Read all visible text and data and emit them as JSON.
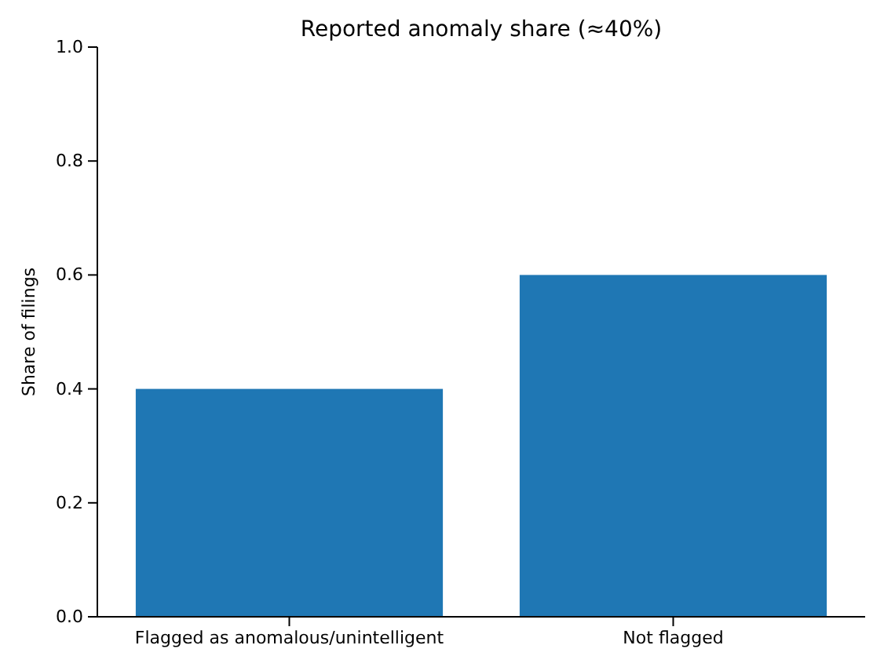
{
  "chart_data": {
    "type": "bar",
    "title": "Reported anomaly share (≈40%)",
    "ylabel": "Share of filings",
    "categories": [
      "Flagged as anomalous/unintelligent",
      "Not flagged"
    ],
    "values": [
      0.4,
      0.6
    ],
    "color": "#1f77b4",
    "ylim": [
      0,
      1
    ],
    "yticks": [
      {
        "value": 0,
        "label": "0.0"
      },
      {
        "value": 0.2,
        "label": "0.2"
      },
      {
        "value": 0.4,
        "label": "0.4"
      },
      {
        "value": 0.6,
        "label": "0.6"
      },
      {
        "value": 0.8,
        "label": "0.8"
      },
      {
        "value": 1,
        "label": "1.0"
      }
    ],
    "grid": false
  }
}
